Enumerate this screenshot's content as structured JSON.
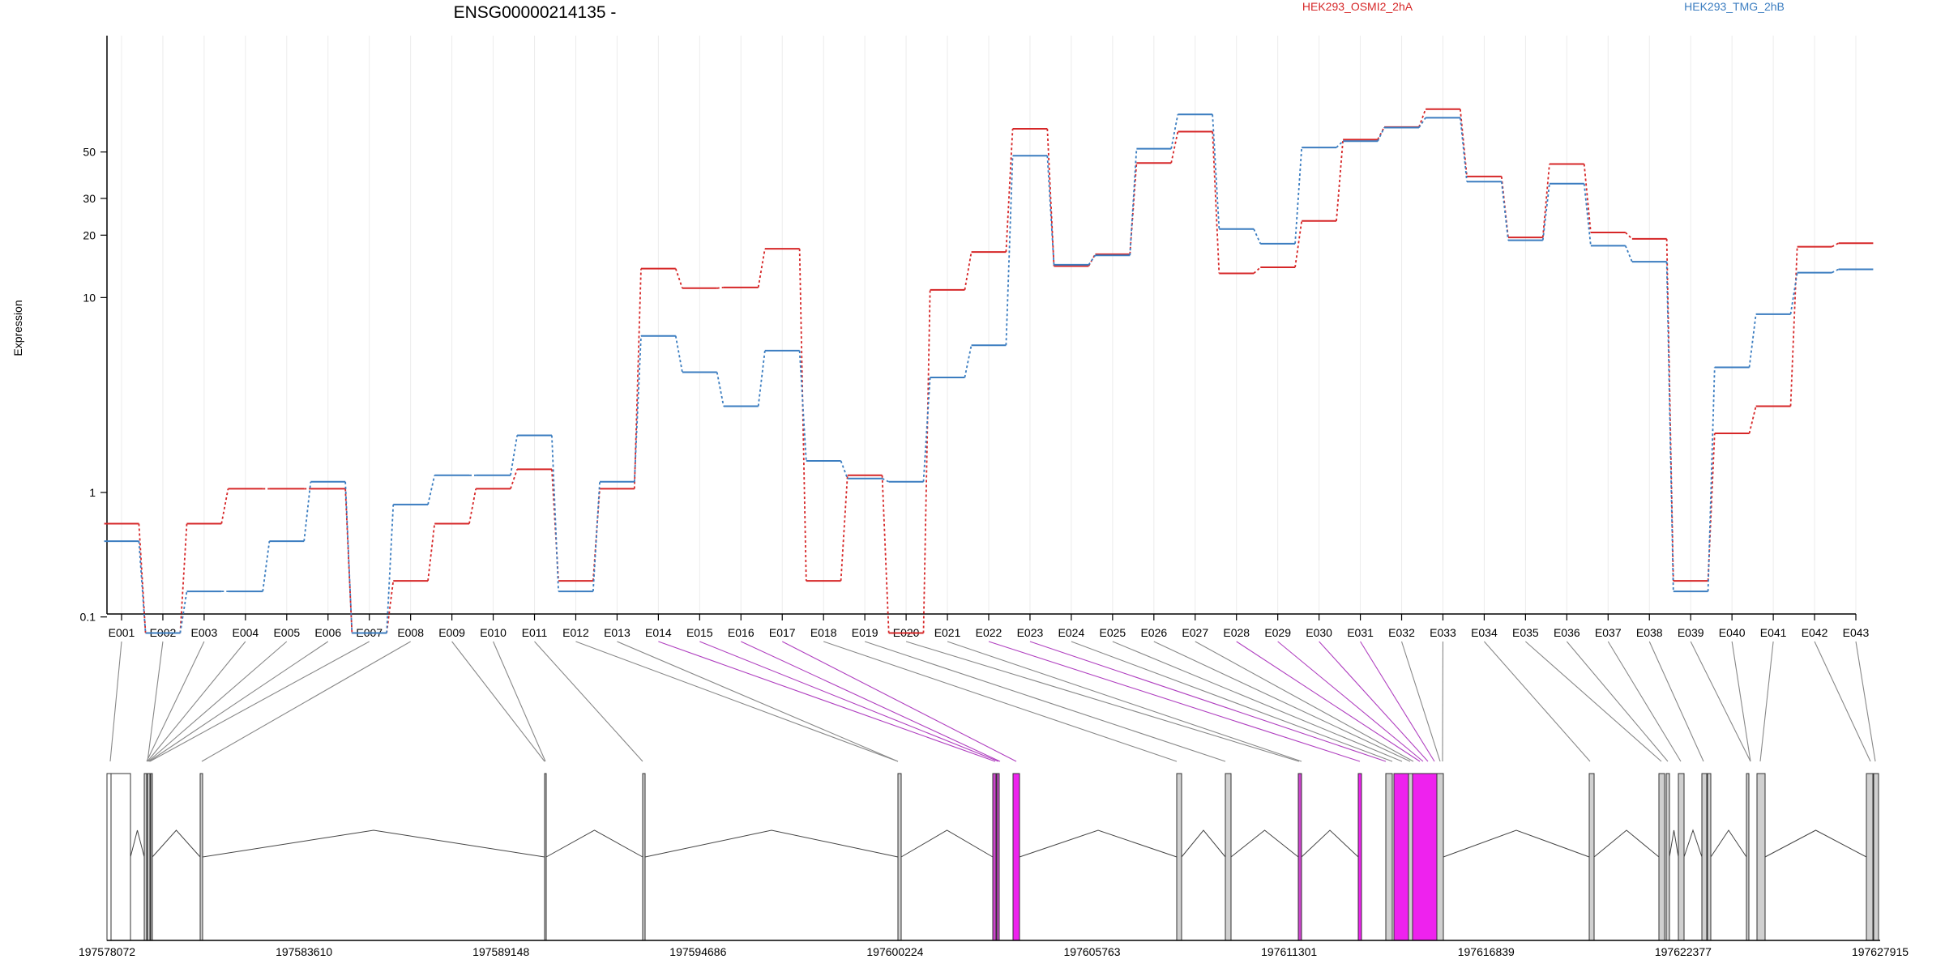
{
  "chart_data": {
    "type": "line",
    "title": "ENSG00000214135 -",
    "ylabel": "Expression",
    "y_scale": "log (pseudo)",
    "y_ticks": [
      0.1,
      1,
      10,
      20,
      30,
      50
    ],
    "categories": [
      "E001",
      "E002",
      "E003",
      "E004",
      "E005",
      "E006",
      "E007",
      "E008",
      "E009",
      "E010",
      "E011",
      "E012",
      "E013",
      "E014",
      "E015",
      "E016",
      "E017",
      "E018",
      "E019",
      "E020",
      "E021",
      "E022",
      "E023",
      "E024",
      "E025",
      "E026",
      "E027",
      "E028",
      "E029",
      "E030",
      "E031",
      "E032",
      "E033",
      "E034",
      "E035",
      "E036",
      "E037",
      "E038",
      "E039",
      "E040",
      "E041",
      "E042",
      "E043"
    ],
    "series": [
      {
        "name": "HEK293_OSMI2_2hA",
        "color": "#d62728",
        "values": [
          0.65,
          0.05,
          0.65,
          1.05,
          1.05,
          1.05,
          0.05,
          0.25,
          0.65,
          1.05,
          1.35,
          0.25,
          1.05,
          13.8,
          11.1,
          11.2,
          17.2,
          0.25,
          1.25,
          0.05,
          10.9,
          16.6,
          64.5,
          14.2,
          16.2,
          44.3,
          62.5,
          13.1,
          14.0,
          23.4,
          57.3,
          65.7,
          80.0,
          38.2,
          19.5,
          43.8,
          20.6,
          19.2,
          0.25,
          2.1,
          2.9,
          17.6,
          18.3
        ]
      },
      {
        "name": "HEK293_TMG_2hB",
        "color": "#3b7dc0",
        "values": [
          0.5,
          0.05,
          0.2,
          0.2,
          0.5,
          1.15,
          0.05,
          0.85,
          1.25,
          1.25,
          2.05,
          0.2,
          1.15,
          6.5,
          4.3,
          2.9,
          5.5,
          1.5,
          1.2,
          1.15,
          4.05,
          5.85,
          48.0,
          14.4,
          16.0,
          51.8,
          75.5,
          21.4,
          18.2,
          52.5,
          56.3,
          65.4,
          72.8,
          36.1,
          18.9,
          35.3,
          17.8,
          14.9,
          0.2,
          4.55,
          8.3,
          13.2,
          13.7
        ]
      }
    ],
    "gene_model": {
      "genomic_ticks": [
        "197578072",
        "197583610",
        "197589148",
        "197594686",
        "197600224",
        "197605763",
        "197611301",
        "197616839",
        "197622377",
        "197627915"
      ]
    }
  }
}
